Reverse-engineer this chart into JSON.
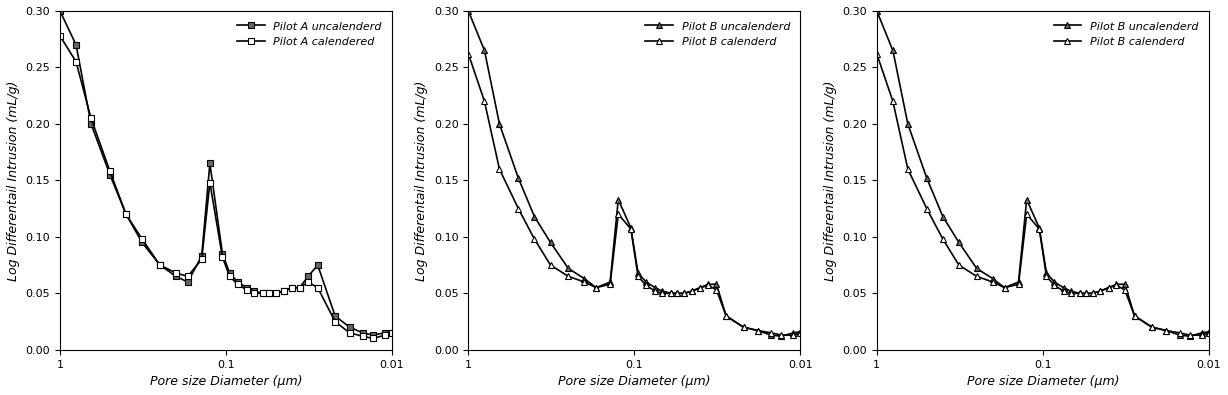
{
  "plots": [
    {
      "legend1": "Pilot A uncalenderd",
      "legend2": "Pilot A calendered",
      "marker1": "s",
      "marker2": "s",
      "fill1": "#666666",
      "fill2": "#ffffff",
      "series1_x": [
        1.0,
        0.8,
        0.65,
        0.5,
        0.4,
        0.32,
        0.25,
        0.2,
        0.17,
        0.14,
        0.125,
        0.105,
        0.095,
        0.085,
        0.075,
        0.068,
        0.06,
        0.055,
        0.05,
        0.045,
        0.04,
        0.036,
        0.032,
        0.028,
        0.022,
        0.018,
        0.015,
        0.013,
        0.011,
        0.01
      ],
      "series1_y": [
        0.3,
        0.27,
        0.2,
        0.155,
        0.12,
        0.095,
        0.075,
        0.065,
        0.06,
        0.083,
        0.165,
        0.085,
        0.068,
        0.06,
        0.055,
        0.052,
        0.05,
        0.05,
        0.05,
        0.052,
        0.055,
        0.055,
        0.065,
        0.075,
        0.03,
        0.02,
        0.015,
        0.013,
        0.015,
        0.015
      ],
      "series2_x": [
        1.0,
        0.8,
        0.65,
        0.5,
        0.4,
        0.32,
        0.25,
        0.2,
        0.17,
        0.14,
        0.125,
        0.105,
        0.095,
        0.085,
        0.075,
        0.068,
        0.06,
        0.055,
        0.05,
        0.045,
        0.04,
        0.036,
        0.032,
        0.028,
        0.022,
        0.018,
        0.015,
        0.013,
        0.011,
        0.01
      ],
      "series2_y": [
        0.278,
        0.255,
        0.205,
        0.158,
        0.12,
        0.098,
        0.075,
        0.068,
        0.065,
        0.08,
        0.148,
        0.082,
        0.065,
        0.058,
        0.053,
        0.05,
        0.05,
        0.05,
        0.05,
        0.052,
        0.055,
        0.055,
        0.06,
        0.055,
        0.025,
        0.015,
        0.012,
        0.01,
        0.013,
        0.015
      ]
    },
    {
      "legend1": "Pilot B uncalenderd",
      "legend2": "Pilot B calenderd",
      "marker1": "^",
      "marker2": "^",
      "fill1": "#666666",
      "fill2": "#ffffff",
      "series1_x": [
        1.0,
        0.8,
        0.65,
        0.5,
        0.4,
        0.32,
        0.25,
        0.2,
        0.17,
        0.14,
        0.125,
        0.105,
        0.095,
        0.085,
        0.075,
        0.068,
        0.06,
        0.055,
        0.05,
        0.045,
        0.04,
        0.036,
        0.032,
        0.028,
        0.022,
        0.018,
        0.015,
        0.013,
        0.011,
        0.01
      ],
      "series1_y": [
        0.3,
        0.265,
        0.2,
        0.152,
        0.118,
        0.095,
        0.072,
        0.063,
        0.055,
        0.06,
        0.133,
        0.108,
        0.068,
        0.06,
        0.055,
        0.052,
        0.05,
        0.05,
        0.05,
        0.052,
        0.055,
        0.058,
        0.058,
        0.03,
        0.02,
        0.017,
        0.013,
        0.012,
        0.015,
        0.016
      ],
      "series2_x": [
        1.0,
        0.8,
        0.65,
        0.5,
        0.4,
        0.32,
        0.25,
        0.2,
        0.17,
        0.14,
        0.125,
        0.105,
        0.095,
        0.085,
        0.075,
        0.068,
        0.06,
        0.055,
        0.05,
        0.045,
        0.04,
        0.036,
        0.032,
        0.028,
        0.022,
        0.018,
        0.015,
        0.013,
        0.011,
        0.01
      ],
      "series2_y": [
        0.262,
        0.22,
        0.16,
        0.125,
        0.098,
        0.075,
        0.065,
        0.06,
        0.055,
        0.058,
        0.12,
        0.107,
        0.065,
        0.057,
        0.052,
        0.05,
        0.05,
        0.05,
        0.05,
        0.052,
        0.055,
        0.057,
        0.053,
        0.03,
        0.02,
        0.017,
        0.015,
        0.013,
        0.013,
        0.015
      ]
    },
    {
      "legend1": "Pilot B uncalenderd",
      "legend2": "Pilot B calenderd",
      "marker1": "^",
      "marker2": "^",
      "fill1": "#666666",
      "fill2": "#ffffff",
      "series1_x": [
        1.0,
        0.8,
        0.65,
        0.5,
        0.4,
        0.32,
        0.25,
        0.2,
        0.17,
        0.14,
        0.125,
        0.105,
        0.095,
        0.085,
        0.075,
        0.068,
        0.06,
        0.055,
        0.05,
        0.045,
        0.04,
        0.036,
        0.032,
        0.028,
        0.022,
        0.018,
        0.015,
        0.013,
        0.011,
        0.01
      ],
      "series1_y": [
        0.3,
        0.265,
        0.2,
        0.152,
        0.118,
        0.095,
        0.072,
        0.063,
        0.055,
        0.06,
        0.133,
        0.108,
        0.068,
        0.06,
        0.055,
        0.052,
        0.05,
        0.05,
        0.05,
        0.052,
        0.055,
        0.058,
        0.058,
        0.03,
        0.02,
        0.017,
        0.013,
        0.012,
        0.015,
        0.016
      ],
      "series2_x": [
        1.0,
        0.8,
        0.65,
        0.5,
        0.4,
        0.32,
        0.25,
        0.2,
        0.17,
        0.14,
        0.125,
        0.105,
        0.095,
        0.085,
        0.075,
        0.068,
        0.06,
        0.055,
        0.05,
        0.045,
        0.04,
        0.036,
        0.032,
        0.028,
        0.022,
        0.018,
        0.015,
        0.013,
        0.011,
        0.01
      ],
      "series2_y": [
        0.262,
        0.22,
        0.16,
        0.125,
        0.098,
        0.075,
        0.065,
        0.06,
        0.055,
        0.058,
        0.12,
        0.107,
        0.065,
        0.057,
        0.052,
        0.05,
        0.05,
        0.05,
        0.05,
        0.052,
        0.055,
        0.057,
        0.053,
        0.03,
        0.02,
        0.017,
        0.015,
        0.013,
        0.013,
        0.015
      ]
    }
  ],
  "ylabel": "Log Differentail Intrusion (mL/g)",
  "xlabel": "Pore size Diameter (μm)",
  "xlim_left": 1.0,
  "xlim_right": 0.01,
  "ylim": [
    0.0,
    0.3
  ],
  "yticks": [
    0.0,
    0.05,
    0.1,
    0.15,
    0.2,
    0.25,
    0.3
  ],
  "background_color": "#ffffff",
  "line_color": "#000000",
  "marker_size": 5,
  "linewidth": 1.2,
  "fontsize_label": 9,
  "fontsize_tick": 8,
  "fontsize_legend": 8
}
